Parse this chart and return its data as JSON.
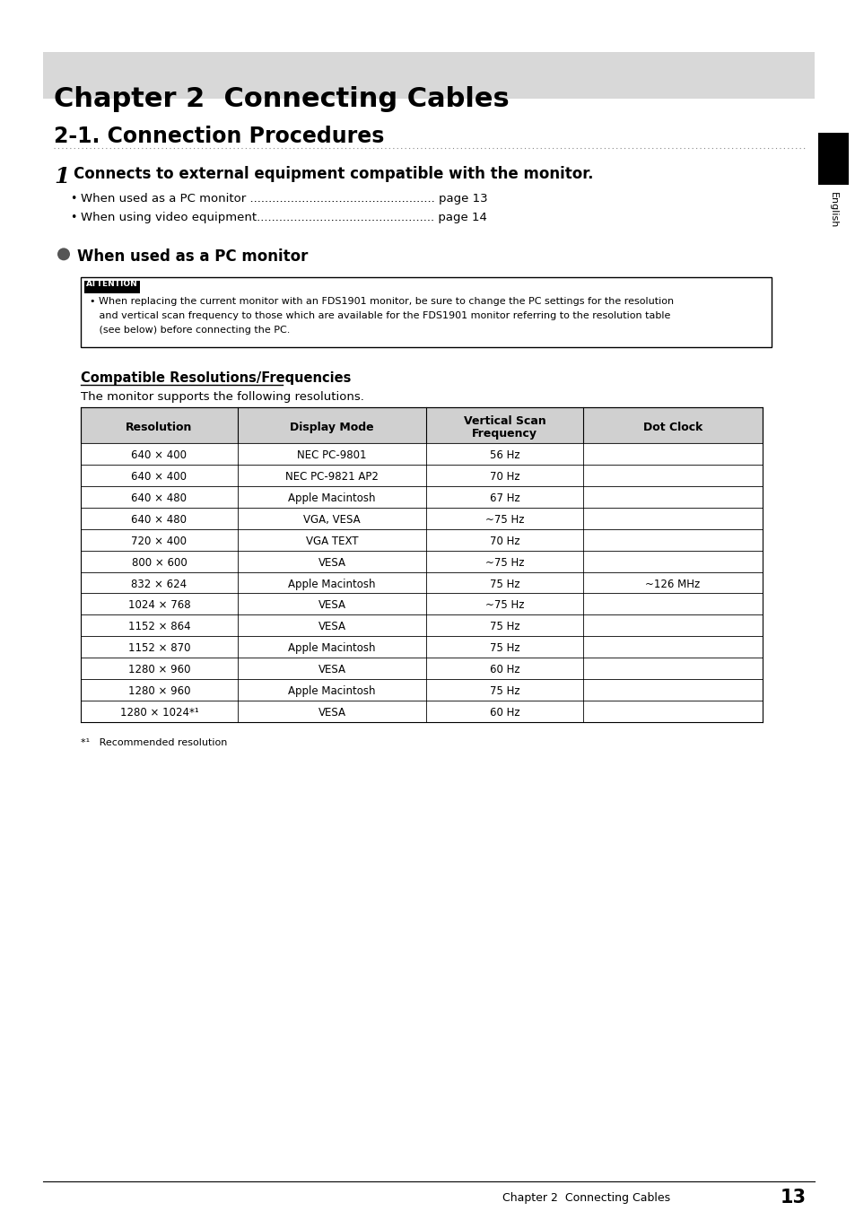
{
  "bg_color": "#ffffff",
  "chapter_title": "Chapter 2  Connecting Cables",
  "chapter_bg": "#d8d8d8",
  "section_title": "2-1. Connection Procedures",
  "step_number": "1",
  "step_text": "Connects to external equipment compatible with the monitor.",
  "bullet_items": [
    "When used as a PC monitor .................................................. page 13",
    "When using video equipment................................................ page 14"
  ],
  "subsection_title": "When used as a PC monitor",
  "attention_label": "ATTENTION",
  "attention_text": "When replacing the current monitor with an FDS1901 monitor, be sure to change the PC settings for the resolution\nand vertical scan frequency to those which are available for the FDS1901 monitor referring to the resolution table\n(see below) before connecting the PC.",
  "compat_section_title": "Compatible Resolutions/Frequencies",
  "compat_intro": "The monitor supports the following resolutions.",
  "table_headers": [
    "Resolution",
    "Display Mode",
    "Vertical Scan\nFrequency",
    "Dot Clock"
  ],
  "table_rows": [
    [
      "640 × 400",
      "NEC PC-9801",
      "56 Hz",
      ""
    ],
    [
      "640 × 400",
      "NEC PC-9821 AP2",
      "70 Hz",
      ""
    ],
    [
      "640 × 480",
      "Apple Macintosh",
      "67 Hz",
      ""
    ],
    [
      "640 × 480",
      "VGA, VESA",
      "~75 Hz",
      ""
    ],
    [
      "720 × 400",
      "VGA TEXT",
      "70 Hz",
      ""
    ],
    [
      "800 × 600",
      "VESA",
      "~75 Hz",
      ""
    ],
    [
      "832 × 624",
      "Apple Macintosh",
      "75 Hz",
      "~126 MHz"
    ],
    [
      "1024 × 768",
      "VESA",
      "~75 Hz",
      ""
    ],
    [
      "1152 × 864",
      "VESA",
      "75 Hz",
      ""
    ],
    [
      "1152 × 870",
      "Apple Macintosh",
      "75 Hz",
      ""
    ],
    [
      "1280 × 960",
      "VESA",
      "60 Hz",
      ""
    ],
    [
      "1280 × 960",
      "Apple Macintosh",
      "75 Hz",
      ""
    ],
    [
      "1280 × 1024*¹",
      "VESA",
      "60 Hz",
      ""
    ]
  ],
  "footnote": "*¹   Recommended resolution",
  "footer_text": "Chapter 2  Connecting Cables",
  "footer_page": "13",
  "english_tab_text": "English"
}
